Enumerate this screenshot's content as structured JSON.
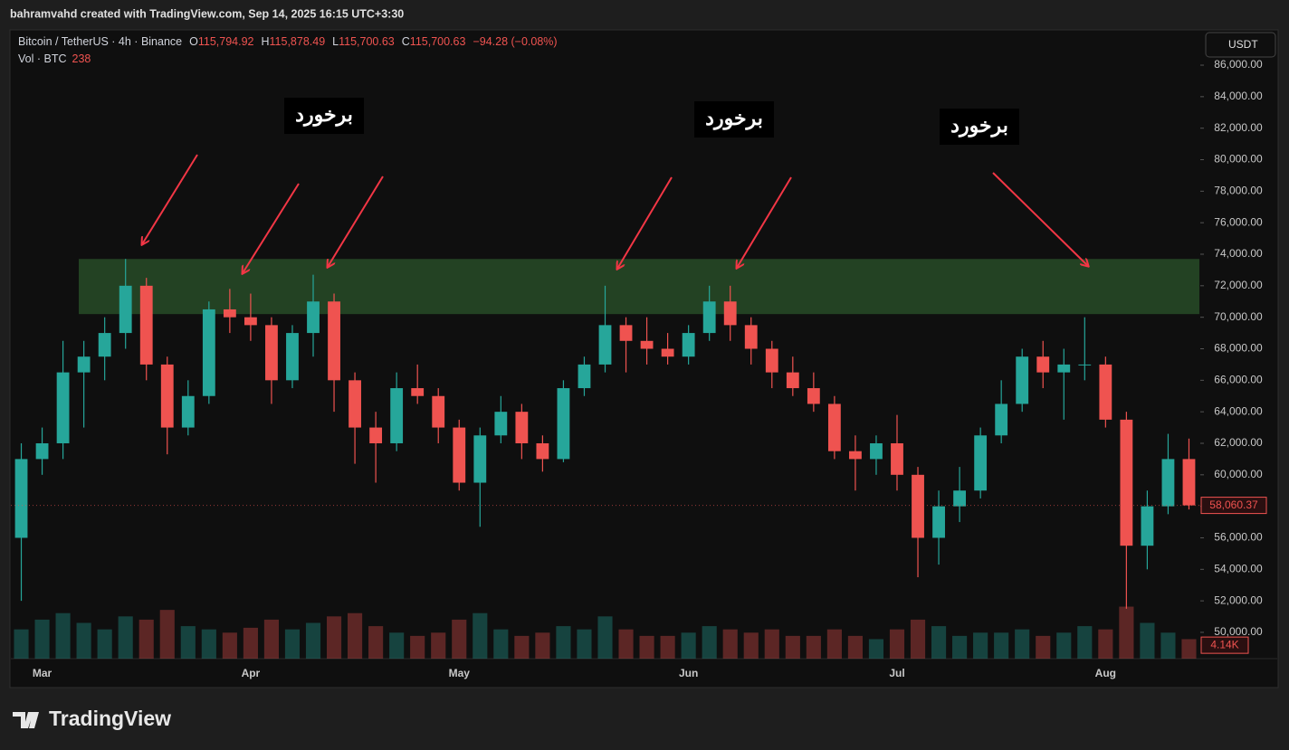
{
  "header": {
    "credit": "bahramvahd created with TradingView.com, Sep 14, 2025 16:15 UTC+3:30"
  },
  "footer": {
    "brand": "TradingView"
  },
  "chart_data": {
    "type": "candlestick",
    "symbol": "Bitcoin / TetherUS · 4h · Binance",
    "ohlc_legend": [
      {
        "key": "O",
        "value": "115,794.92"
      },
      {
        "key": "H",
        "value": "115,878.49"
      },
      {
        "key": "L",
        "value": "115,700.63"
      },
      {
        "key": "C",
        "value": "115,700.63"
      }
    ],
    "change": "−94.28 (−0.08%)",
    "volume_legend": {
      "name": "Vol · BTC",
      "value": 238
    },
    "currency": "USDT",
    "up_color": "#26a69a",
    "down_color": "#ef5350",
    "categories": [
      null,
      "Mar",
      null,
      null,
      null,
      null,
      null,
      null,
      null,
      null,
      null,
      "Apr",
      null,
      null,
      null,
      null,
      null,
      null,
      null,
      null,
      null,
      "May",
      null,
      null,
      null,
      null,
      null,
      null,
      null,
      null,
      null,
      null,
      "Jun",
      null,
      null,
      null,
      null,
      null,
      null,
      null,
      null,
      null,
      "Jul",
      null,
      null,
      null,
      null,
      null,
      null,
      null,
      null,
      null,
      "Aug",
      null,
      null,
      null,
      null
    ],
    "open": [
      56000,
      61000,
      62000,
      66500,
      67500,
      69000,
      72000,
      67000,
      63000,
      65000,
      70500,
      70000,
      69500,
      66000,
      69000,
      71000,
      66000,
      63000,
      62000,
      65500,
      65000,
      63000,
      59500,
      62500,
      64000,
      62000,
      61000,
      65500,
      67000,
      69500,
      68500,
      68000,
      67500,
      69000,
      71000,
      69500,
      68000,
      66500,
      65500,
      64500,
      61500,
      61000,
      62000,
      60000,
      56000,
      58000,
      59000,
      62500,
      64500,
      67500,
      66500,
      67000,
      67000,
      63500,
      55500,
      58000,
      61000
    ],
    "high": [
      62000,
      63000,
      68500,
      68500,
      70000,
      73700,
      72500,
      67500,
      66000,
      71000,
      71800,
      71500,
      70000,
      69500,
      72700,
      71500,
      66500,
      64000,
      66500,
      67000,
      65500,
      63500,
      63000,
      65000,
      64500,
      62500,
      66000,
      67500,
      72000,
      70000,
      70000,
      69000,
      69500,
      72000,
      72000,
      70000,
      68500,
      67500,
      66500,
      65000,
      62500,
      62500,
      63800,
      60500,
      59000,
      60500,
      63000,
      66000,
      68000,
      68500,
      68000,
      70000,
      67500,
      64000,
      59000,
      62600,
      62300
    ],
    "low": [
      52000,
      60000,
      61000,
      63000,
      66000,
      68000,
      66000,
      61300,
      62500,
      64500,
      69000,
      68500,
      64500,
      65500,
      67500,
      64000,
      60700,
      59500,
      61500,
      64500,
      62000,
      59000,
      56700,
      62000,
      61000,
      60200,
      60800,
      65000,
      66500,
      66500,
      67000,
      67000,
      67000,
      68500,
      68500,
      67000,
      65500,
      65000,
      64000,
      61000,
      59000,
      60000,
      59000,
      53500,
      54300,
      57000,
      58500,
      62000,
      64000,
      65500,
      63500,
      66000,
      63000,
      51500,
      54000,
      57500,
      57800
    ],
    "close": [
      61000,
      62000,
      66500,
      67500,
      69000,
      72000,
      67000,
      63000,
      65000,
      70500,
      70000,
      69500,
      66000,
      69000,
      71000,
      66000,
      63000,
      62000,
      65500,
      65000,
      63000,
      59500,
      62500,
      64000,
      62000,
      61000,
      65500,
      67000,
      69500,
      68500,
      68000,
      67500,
      69000,
      71000,
      69500,
      68000,
      66500,
      65500,
      64500,
      61500,
      61000,
      62000,
      60000,
      56000,
      58000,
      59000,
      62500,
      64500,
      67500,
      66500,
      67000,
      67000,
      63500,
      55500,
      58000,
      61000,
      58060.37
    ],
    "volume": [
      9000,
      12000,
      14000,
      11000,
      9000,
      13000,
      12000,
      15000,
      10000,
      9000,
      8000,
      9500,
      12000,
      9000,
      11000,
      13000,
      14000,
      10000,
      8000,
      7000,
      8000,
      12000,
      14000,
      9000,
      7000,
      8000,
      10000,
      9000,
      13000,
      9000,
      7000,
      7000,
      8000,
      10000,
      9000,
      8000,
      9000,
      7000,
      7000,
      9000,
      7000,
      6000,
      9000,
      12000,
      10000,
      7000,
      8000,
      8000,
      9000,
      7000,
      8000,
      10000,
      9000,
      16000,
      11000,
      8000,
      6000
    ],
    "volume_lim": [
      0,
      193000
    ],
    "volume_label": {
      "value": 4140,
      "label": "4.14K"
    },
    "last_price": {
      "value": 58060.37,
      "label": "58,060.37"
    },
    "ylim": [
      48333,
      88126
    ],
    "yticks": [
      {
        "value": 50000,
        "label": "50,000.00"
      },
      {
        "value": 52000,
        "label": "52,000.00"
      },
      {
        "value": 54000,
        "label": "54,000.00"
      },
      {
        "value": 56000,
        "label": "56,000.00"
      },
      {
        "value": 58000,
        "label": "58,000.00"
      },
      {
        "value": 60000,
        "label": "60,000.00"
      },
      {
        "value": 62000,
        "label": "62,000.00"
      },
      {
        "value": 64000,
        "label": "64,000.00"
      },
      {
        "value": 66000,
        "label": "66,000.00"
      },
      {
        "value": 68000,
        "label": "68,000.00"
      },
      {
        "value": 70000,
        "label": "70,000.00"
      },
      {
        "value": 72000,
        "label": "72,000.00"
      },
      {
        "value": 74000,
        "label": "74,000.00"
      },
      {
        "value": 76000,
        "label": "76,000.00"
      },
      {
        "value": 78000,
        "label": "78,000.00"
      },
      {
        "value": 80000,
        "label": "80,000.00"
      },
      {
        "value": 82000,
        "label": "82,000.00"
      },
      {
        "value": 84000,
        "label": "84,000.00"
      },
      {
        "value": 86000,
        "label": "86,000.00"
      }
    ],
    "zone": {
      "from": 70200,
      "to": 73700,
      "color": "#234223"
    },
    "annotations": [
      "برخورد",
      "برخورد",
      "برخورد"
    ]
  }
}
